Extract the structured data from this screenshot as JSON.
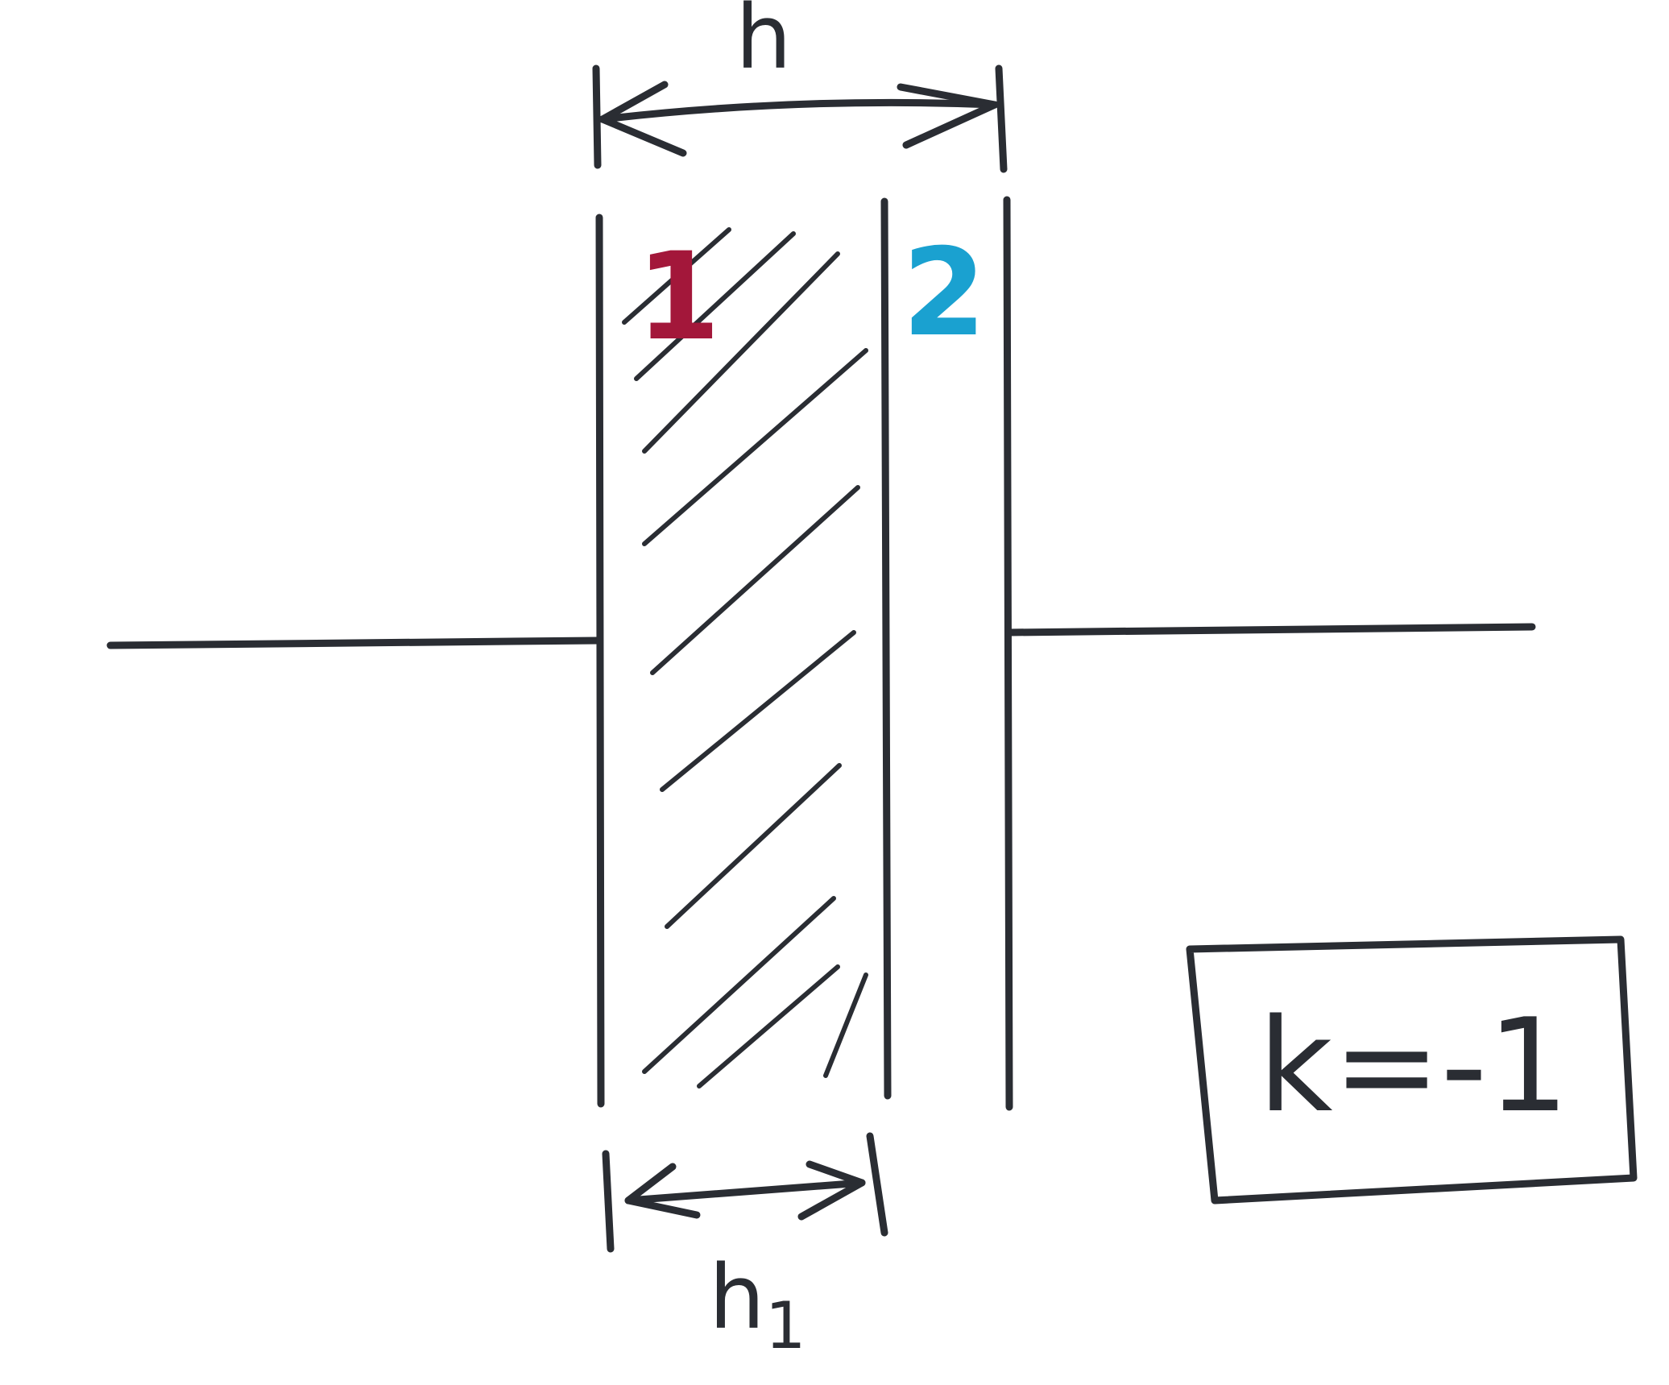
{
  "diagram": {
    "labels": {
      "total_gap": "h",
      "layer_thickness": "h",
      "layer_thickness_subscript": "1",
      "region_1": "1",
      "region_2": "2",
      "k_equation": "k=-1"
    },
    "colors": {
      "ink": "#2a2d33",
      "region_1": "#a3173a",
      "region_2": "#1aa1d0"
    }
  }
}
